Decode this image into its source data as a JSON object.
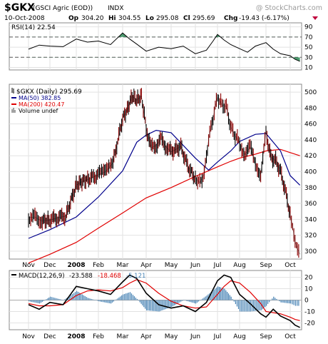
{
  "header": {
    "symbol": "$GKX",
    "desc": "(GSCI Agric (EOD))",
    "exchange": "INDX",
    "watermark": "@ StockCharts.com",
    "date": "10-Oct-2008",
    "open_label": "Op",
    "open": "304.20",
    "high_label": "Hi",
    "high": "304.55",
    "low_label": "Lo",
    "low": "295.08",
    "close_label": "Cl",
    "close": "295.69",
    "change_label": "Chg",
    "change": "-19.43 (-6.17%)"
  },
  "rsi_label": "RSI(14) 22.54",
  "legend": {
    "price": "$GKX (Daily) 295.69",
    "ma50": "MA(50) 382.85",
    "ma200": "MA(200) 420.47",
    "volume": "Volume undef"
  },
  "macd_label": {
    "name": "MACD(12,26,9)",
    "macd": "-23.588",
    "signal": "-18.468",
    "hist": "-5.121"
  },
  "colors": {
    "ma50": "#00008b",
    "ma200": "#e00000",
    "rsi_fill": "#2e8b57",
    "hist": "#4682b4",
    "up": "#000000",
    "down": "#8b0000"
  },
  "chart_data": {
    "type": "line",
    "months": [
      "Nov",
      "Dec",
      "2008",
      "Feb",
      "Mar",
      "Apr",
      "May",
      "Jun",
      "Jul",
      "Aug",
      "Sep",
      "Oct"
    ],
    "price_axis": {
      "ticks": [
        300,
        320,
        340,
        360,
        380,
        400,
        420,
        440,
        460,
        480,
        500
      ],
      "range": [
        290,
        510
      ]
    },
    "rsi_axis": {
      "ticks": [
        10,
        30,
        50,
        70,
        90
      ],
      "levels": [
        30,
        70
      ],
      "range": [
        5,
        98
      ]
    },
    "macd_axis": {
      "ticks": [
        -20,
        -10,
        0,
        10,
        20
      ],
      "range": [
        -26,
        26
      ]
    },
    "series": [
      {
        "name": "$GKX",
        "x": [
          0,
          0.3,
          0.6,
          1,
          1.3,
          1.6,
          2,
          2.3,
          2.6,
          3,
          3.3,
          3.6,
          4,
          4.2,
          4.4,
          4.6,
          4.8,
          5,
          5.2,
          5.4,
          5.6,
          5.8,
          6,
          6.2,
          6.4,
          6.6,
          6.8,
          7,
          7.2,
          7.4,
          7.6,
          7.8,
          8,
          8.2,
          8.4,
          8.6,
          8.8,
          9,
          9.2,
          9.4,
          9.6,
          9.8,
          10,
          10.2,
          10.4,
          10.6,
          10.8,
          11,
          11.1,
          11.2,
          11.3,
          11.4
        ],
        "values": [
          342,
          343,
          338,
          339,
          342,
          344,
          383,
          388,
          391,
          396,
          400,
          411,
          467,
          478,
          495,
          490,
          495,
          455,
          430,
          433,
          441,
          431,
          425,
          428,
          432,
          414,
          400,
          392,
          386,
          397,
          441,
          468,
          494,
          484,
          482,
          456,
          445,
          437,
          421,
          431,
          410,
          397,
          450,
          418,
          414,
          400,
          376,
          346,
          330,
          312,
          303,
          296
        ]
      },
      {
        "name": "MA(50)",
        "x": [
          0,
          1,
          2,
          3,
          4,
          4.6,
          5,
          5.4,
          6,
          7,
          7.6,
          8,
          8.6,
          9,
          9.6,
          10,
          10.6,
          11,
          11.4
        ],
        "values": [
          316,
          327,
          343,
          368,
          401,
          437,
          446,
          452,
          449,
          417,
          402,
          412,
          426,
          438,
          447,
          448,
          426,
          395,
          383
        ]
      },
      {
        "name": "MA(200)",
        "x": [
          0,
          1,
          2,
          3,
          4,
          5,
          6,
          7,
          8,
          8.6,
          9,
          9.6,
          10,
          10.6,
          11,
          11.4
        ],
        "values": [
          285,
          296,
          311,
          329,
          348,
          367,
          380,
          394,
          406,
          413,
          417,
          422,
          426,
          428,
          424,
          420
        ]
      },
      {
        "name": "RSI(14)",
        "x": [
          0,
          0.5,
          1,
          1.5,
          2,
          2.5,
          3,
          3.5,
          4,
          4.3,
          4.6,
          5,
          5.5,
          6,
          6.5,
          7,
          7.5,
          7.8,
          8,
          8.3,
          8.6,
          9,
          9.3,
          9.6,
          10,
          10.3,
          10.6,
          11,
          11.2,
          11.4
        ],
        "values": [
          46,
          54,
          52,
          51,
          66,
          60,
          62,
          55,
          78,
          66,
          56,
          42,
          50,
          47,
          52,
          37,
          44,
          62,
          75,
          64,
          55,
          47,
          40,
          52,
          59,
          46,
          37,
          33,
          26,
          22
        ]
      },
      {
        "name": "MACD",
        "x": [
          0,
          0.5,
          1,
          1.5,
          2,
          2.5,
          3,
          3.5,
          4,
          4.3,
          4.6,
          5,
          5.5,
          6,
          6.5,
          7,
          7.5,
          8,
          8.3,
          8.6,
          9,
          9.4,
          9.8,
          10,
          10.3,
          10.6,
          11,
          11.2,
          11.4
        ],
        "values": [
          -4,
          -8,
          -2,
          -4,
          12,
          10,
          8,
          5,
          16,
          22,
          19,
          6,
          -4,
          -7,
          -5,
          -10,
          -2,
          17,
          22,
          20,
          5,
          -3,
          -12,
          -15,
          -8,
          -14,
          -18,
          -22,
          -24
        ]
      },
      {
        "name": "Signal",
        "x": [
          0,
          0.5,
          1,
          1.5,
          2,
          2.5,
          3,
          3.5,
          4,
          4.3,
          4.6,
          5,
          5.5,
          6,
          6.5,
          7,
          7.5,
          8,
          8.3,
          8.6,
          9,
          9.4,
          9.8,
          10,
          10.3,
          10.6,
          11,
          11.2,
          11.4
        ],
        "values": [
          -3,
          -5,
          -5,
          -4,
          4,
          8,
          9,
          8,
          11,
          15,
          18,
          15,
          6,
          -1,
          -5,
          -7,
          -6,
          5,
          12,
          17,
          15,
          7,
          -3,
          -10,
          -11,
          -12,
          -15,
          -17,
          -18
        ]
      },
      {
        "name": "Histogram",
        "x": [
          0,
          0.5,
          1,
          1.5,
          2,
          2.5,
          3,
          3.5,
          4,
          4.3,
          4.6,
          5,
          5.5,
          6,
          6.5,
          7,
          7.5,
          8,
          8.3,
          8.6,
          9,
          9.4,
          9.8,
          10,
          10.3,
          10.6,
          11,
          11.2,
          11.4
        ],
        "values": [
          -1,
          -3,
          3,
          0,
          8,
          2,
          -1,
          -3,
          5,
          7,
          1,
          -9,
          -10,
          -6,
          0,
          -3,
          4,
          12,
          10,
          3,
          -10,
          -10,
          -9,
          -5,
          3,
          -2,
          -3,
          -5,
          -5
        ]
      }
    ]
  }
}
